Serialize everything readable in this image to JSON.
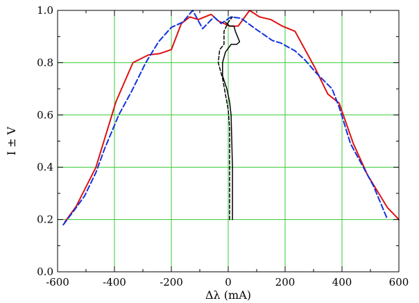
{
  "chart_data": {
    "type": "line",
    "xlabel": "Δλ (mA)",
    "ylabel": "I ± V",
    "xlim": [
      -600,
      600
    ],
    "ylim": [
      0.0,
      1.0
    ],
    "xticks": [
      -600,
      -400,
      -200,
      0,
      200,
      400,
      600
    ],
    "yticks": [
      0.0,
      0.2,
      0.4,
      0.6,
      0.8,
      1.0
    ],
    "xtick_labels": [
      "-600",
      "-400",
      "-200",
      "0",
      "200",
      "400",
      "600"
    ],
    "ytick_labels": [
      "0.0",
      "0.2",
      "0.4",
      "0.6",
      "0.8",
      "1.0"
    ],
    "grid": true,
    "grid_color": "#33cc33",
    "series": [
      {
        "color": "#e01010",
        "style": "solid",
        "width": 2,
        "x": [
          -575,
          -535,
          -465,
          -395,
          -335,
          -280,
          -240,
          -200,
          -165,
          -135,
          -105,
          -60,
          -35,
          5,
          35,
          75,
          110,
          150,
          190,
          235,
          305,
          350,
          390,
          440,
          490,
          560,
          600
        ],
        "y": [
          0.19,
          0.25,
          0.4,
          0.65,
          0.8,
          0.83,
          0.835,
          0.85,
          0.95,
          0.975,
          0.965,
          0.985,
          0.96,
          0.94,
          0.94,
          1.0,
          0.975,
          0.965,
          0.94,
          0.92,
          0.78,
          0.68,
          0.645,
          0.49,
          0.37,
          0.245,
          0.2
        ]
      },
      {
        "color": "#1030e0",
        "style": "dashed",
        "width": 2,
        "x": [
          -580,
          -545,
          -505,
          -465,
          -435,
          -385,
          -340,
          -290,
          -245,
          -200,
          -160,
          -125,
          -90,
          -50,
          -25,
          10,
          45,
          95,
          155,
          185,
          235,
          270,
          310,
          365,
          390,
          430,
          460,
          510,
          560
        ],
        "y": [
          0.18,
          0.23,
          0.29,
          0.38,
          0.47,
          0.6,
          0.69,
          0.8,
          0.88,
          0.935,
          0.955,
          1.0,
          0.93,
          0.975,
          0.95,
          0.975,
          0.97,
          0.93,
          0.885,
          0.875,
          0.845,
          0.81,
          0.76,
          0.7,
          0.63,
          0.49,
          0.43,
          0.33,
          0.2
        ]
      },
      {
        "color": "#000000",
        "style": "solid",
        "width": 1.5,
        "x": [
          15,
          15,
          10,
          5,
          -5,
          -20,
          -20,
          -10,
          10,
          30,
          40,
          25,
          20,
          5,
          -10
        ],
        "y": [
          0.2,
          0.4,
          0.6,
          0.65,
          0.7,
          0.75,
          0.8,
          0.84,
          0.87,
          0.87,
          0.88,
          0.92,
          0.94,
          0.94,
          0.955
        ]
      },
      {
        "color": "#000000",
        "style": "dashed",
        "width": 1.5,
        "x": [
          5,
          5,
          5,
          0,
          -10,
          -20,
          -35,
          -30,
          -15,
          -15,
          0,
          15
        ],
        "y": [
          0.2,
          0.35,
          0.55,
          0.62,
          0.68,
          0.74,
          0.8,
          0.85,
          0.87,
          0.92,
          0.955,
          0.975
        ]
      }
    ]
  }
}
